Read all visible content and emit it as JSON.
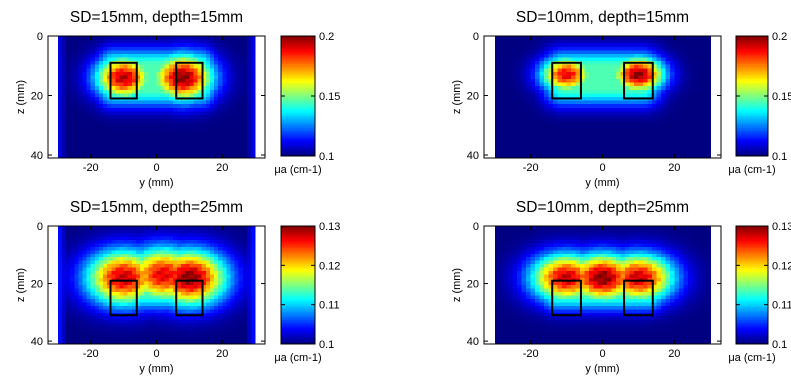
{
  "chart_data": [
    {
      "type": "heatmap",
      "title": "SD=15mm, depth=15mm",
      "xlabel": "y (mm)",
      "ylabel": "z (mm)",
      "xticks": [
        "-20",
        "0",
        "20"
      ],
      "yticks": [
        "0",
        "20",
        "40"
      ],
      "xlim": [
        -33,
        33
      ],
      "ylim": [
        0,
        41
      ],
      "colorbar": {
        "label": "μa (cm-1)",
        "min": 0.1,
        "max": 0.2,
        "ticks": [
          "0.1",
          "0.15",
          "0.2"
        ]
      },
      "field": {
        "background": 0.1,
        "edge": 0.112,
        "blob_extent_y": 26,
        "blob_z": [
          4,
          24
        ],
        "hotspots": [
          {
            "y": -10,
            "z": 14,
            "peak": 0.195,
            "spread": 6
          },
          {
            "y": 8,
            "z": 14,
            "peak": 0.2,
            "spread": 6.5
          }
        ]
      },
      "inclusions": [
        {
          "y_min": -14,
          "y_max": -6,
          "z_min": 9,
          "z_max": 21
        },
        {
          "y_min": 6,
          "y_max": 14,
          "z_min": 9,
          "z_max": 21
        }
      ]
    },
    {
      "type": "heatmap",
      "title": "SD=10mm, depth=15mm",
      "xlabel": "y (mm)",
      "ylabel": "z (mm)",
      "xticks": [
        "-20",
        "0",
        "20"
      ],
      "yticks": [
        "0",
        "20",
        "40"
      ],
      "xlim": [
        -33,
        33
      ],
      "ylim": [
        0,
        41
      ],
      "colorbar": {
        "label": "μa (cm-1)",
        "min": 0.1,
        "max": 0.2,
        "ticks": [
          "0.1",
          "0.15",
          "0.2"
        ]
      },
      "field": {
        "background": 0.1,
        "edge": 0.1,
        "blob_extent_y": 22,
        "blob_z": [
          5,
          23
        ],
        "hotspots": [
          {
            "y": -10,
            "z": 13,
            "peak": 0.19,
            "spread": 5
          },
          {
            "y": 10,
            "z": 13,
            "peak": 0.2,
            "spread": 5
          }
        ]
      },
      "inclusions": [
        {
          "y_min": -14,
          "y_max": -6,
          "z_min": 9,
          "z_max": 21
        },
        {
          "y_min": 6,
          "y_max": 14,
          "z_min": 9,
          "z_max": 21
        }
      ]
    },
    {
      "type": "heatmap",
      "title": "SD=15mm, depth=25mm",
      "xlabel": "y (mm)",
      "ylabel": "z (mm)",
      "xticks": [
        "-20",
        "0",
        "20"
      ],
      "yticks": [
        "0",
        "20",
        "40"
      ],
      "xlim": [
        -33,
        33
      ],
      "ylim": [
        0,
        41
      ],
      "colorbar": {
        "label": "μa (cm-1)",
        "min": 0.1,
        "max": 0.13,
        "ticks": [
          "0.1",
          "0.11",
          "0.12",
          "0.13"
        ]
      },
      "field": {
        "background": 0.1,
        "edge": 0.105,
        "blob_extent_y": 28,
        "blob_z": [
          8,
          30
        ],
        "hotspots": [
          {
            "y": -10,
            "z": 18,
            "peak": 0.128,
            "spread": 8
          },
          {
            "y": 2,
            "z": 17,
            "peak": 0.127,
            "spread": 8
          },
          {
            "y": 10,
            "z": 18,
            "peak": 0.13,
            "spread": 8
          }
        ]
      },
      "inclusions": [
        {
          "y_min": -14,
          "y_max": -6,
          "z_min": 19,
          "z_max": 31
        },
        {
          "y_min": 6,
          "y_max": 14,
          "z_min": 19,
          "z_max": 31
        }
      ]
    },
    {
      "type": "heatmap",
      "title": "SD=10mm, depth=25mm",
      "xlabel": "y (mm)",
      "ylabel": "z (mm)",
      "xticks": [
        "-20",
        "0",
        "20"
      ],
      "yticks": [
        "0",
        "20",
        "40"
      ],
      "xlim": [
        -33,
        33
      ],
      "ylim": [
        0,
        41
      ],
      "colorbar": {
        "label": "μa (cm-1)",
        "min": 0.1,
        "max": 0.13,
        "ticks": [
          "0.1",
          "0.11",
          "0.12",
          "0.13"
        ]
      },
      "field": {
        "background": 0.1,
        "edge": 0.1,
        "blob_extent_y": 25,
        "blob_z": [
          9,
          30
        ],
        "hotspots": [
          {
            "y": -10,
            "z": 18,
            "peak": 0.128,
            "spread": 7
          },
          {
            "y": 0,
            "z": 18,
            "peak": 0.13,
            "spread": 7
          },
          {
            "y": 10,
            "z": 18,
            "peak": 0.128,
            "spread": 7
          }
        ]
      },
      "inclusions": [
        {
          "y_min": -14,
          "y_max": -6,
          "z_min": 19,
          "z_max": 31
        },
        {
          "y_min": 6,
          "y_max": 14,
          "z_min": 19,
          "z_max": 31
        }
      ]
    }
  ]
}
